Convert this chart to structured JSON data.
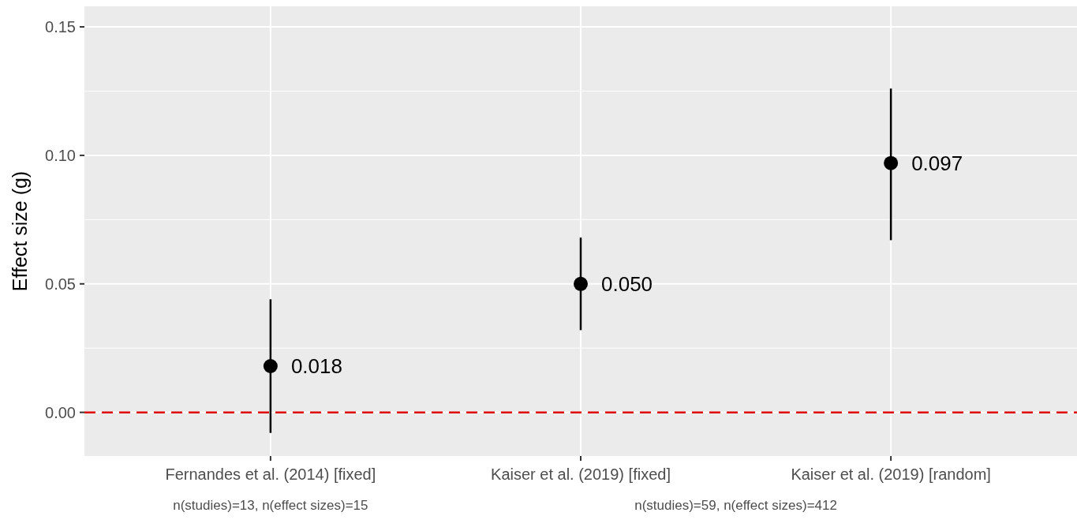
{
  "chart_data": {
    "type": "scatter",
    "ylabel": "Effect size (g)",
    "categories": [
      "Fernandes et al. (2014) [fixed]",
      "Kaiser et al. (2019) [fixed]",
      "Kaiser et al. (2019) [random]"
    ],
    "values": [
      0.018,
      0.05,
      0.097
    ],
    "errors": [
      [
        -0.008,
        0.044
      ],
      [
        0.032,
        0.068
      ],
      [
        0.067,
        0.126
      ]
    ],
    "value_labels": [
      "0.018",
      "0.050",
      "0.097"
    ],
    "color": "#000000",
    "marker": "circle",
    "ylim": [
      -0.017,
      0.158
    ],
    "yticks": [
      {
        "value": 0,
        "label": "0.00"
      },
      {
        "value": 0.05,
        "label": "0.05"
      },
      {
        "value": 0.1,
        "label": "0.10"
      },
      {
        "value": 0.15,
        "label": "0.15"
      }
    ],
    "grid": true,
    "ref_lines": [
      {
        "axis": "y",
        "value": 0,
        "color": "#e00000",
        "line_style": "dashed"
      }
    ],
    "annotations": [
      "n(studies)=13, n(effect sizes)=15",
      "n(studies)=59, n(effect sizes)=412"
    ]
  }
}
